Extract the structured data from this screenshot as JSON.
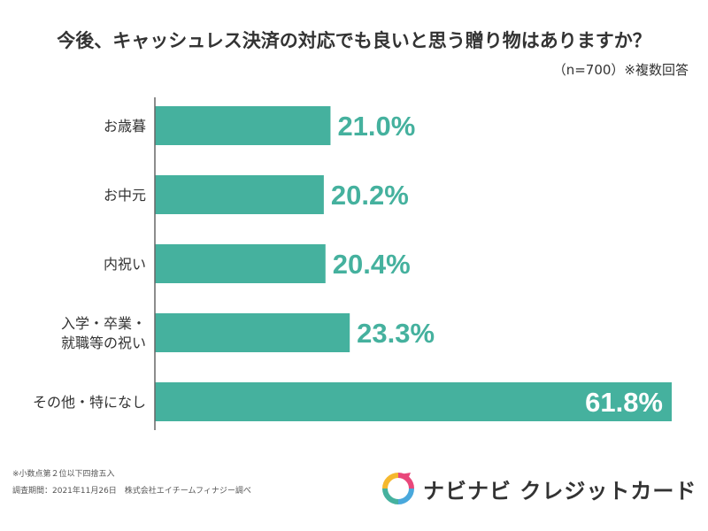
{
  "chart_data": {
    "type": "bar",
    "orientation": "horizontal",
    "title": "今後、キャッシュレス決済の対応でも良いと思う贈り物はありますか？",
    "subtitle": "（n=700）※複数回答",
    "categories": [
      [
        "お歳暮"
      ],
      [
        "お中元"
      ],
      [
        "内祝い"
      ],
      [
        "入学・卒業・",
        "就職等の祝い"
      ],
      [
        "その他・特になし"
      ]
    ],
    "values": [
      21.0,
      20.2,
      20.4,
      23.3,
      61.8
    ],
    "labels": [
      "21.0%",
      "20.2%",
      "20.4%",
      "23.3%",
      "61.8%"
    ],
    "xlim": [
      0,
      100
    ],
    "unit": "%",
    "grid": false,
    "legend": "none"
  },
  "colors": {
    "bar": "#45b19e",
    "axis": "#666666",
    "text": "#333333"
  },
  "footnotes": {
    "rounding": "※小数点第２位以下四捨五入",
    "survey": "調査期間：2021年11月26日　株式会社エイチームフィナジー調べ"
  },
  "brand": {
    "name": "ナビナビ クレジットカード",
    "logo_icon": "brand-logo-icon"
  }
}
